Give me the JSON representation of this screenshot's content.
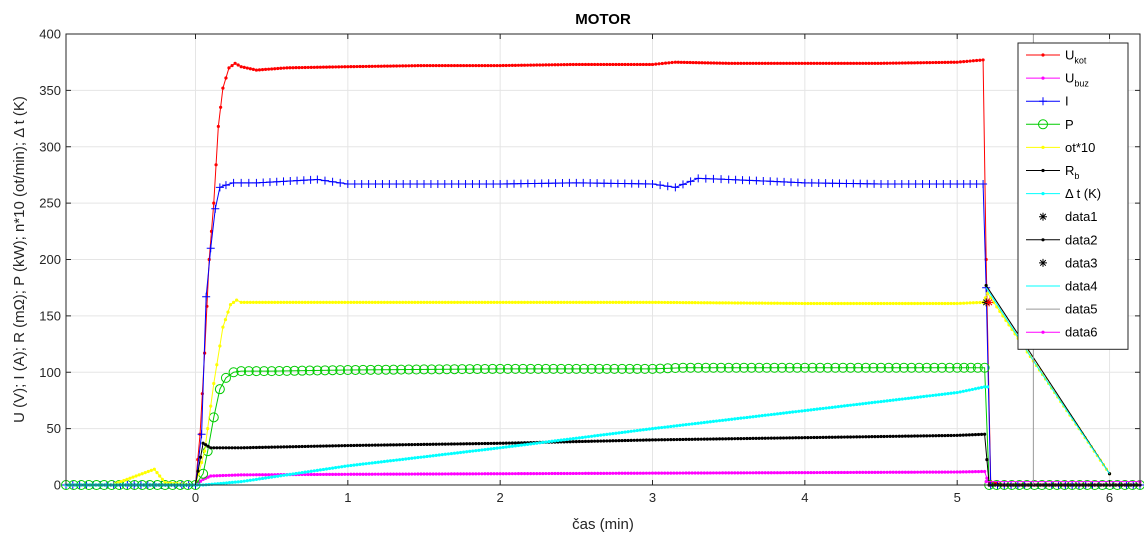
{
  "chart_data": {
    "type": "line",
    "title": "MOTOR",
    "xlabel": "čas (min)",
    "ylabel": "U (V); I (A); R (mΩ); P (kW); n*10 (ot/min); Δ t (K)",
    "xlim": [
      -0.85,
      6.2
    ],
    "ylim": [
      0,
      400
    ],
    "xticks": [
      0,
      1,
      2,
      3,
      4,
      5,
      6
    ],
    "yticks": [
      0,
      50,
      100,
      150,
      200,
      250,
      300,
      350,
      400
    ],
    "grid": true,
    "legend_position": "top-right",
    "series": [
      {
        "name": "U",
        "sub": "kot",
        "color": "#ff0000",
        "marker": "dot",
        "x": [
          -0.85,
          0.0,
          0.03,
          0.06,
          0.09,
          0.12,
          0.15,
          0.18,
          0.22,
          0.26,
          0.3,
          0.4,
          0.6,
          1.0,
          1.5,
          2.0,
          2.5,
          3.0,
          3.15,
          3.5,
          4.0,
          4.5,
          5.0,
          5.17,
          5.19,
          5.22,
          5.3,
          6.2
        ],
        "y": [
          0,
          0,
          45,
          117,
          200,
          250,
          318,
          352,
          370,
          374,
          371,
          368,
          370,
          371,
          372,
          372,
          373,
          373,
          375,
          374,
          374,
          374,
          375,
          377,
          200,
          3,
          0,
          0
        ]
      },
      {
        "name": "U",
        "sub": "buz",
        "color": "#ff00ff",
        "marker": "dot",
        "x": [
          -0.85,
          0.0,
          0.05,
          0.1,
          0.3,
          1.0,
          2.0,
          3.0,
          4.0,
          5.0,
          5.18,
          5.21,
          6.2
        ],
        "y": [
          0,
          0,
          5,
          8,
          9,
          9.5,
          10,
          10.5,
          11,
          11.5,
          12,
          0,
          0
        ]
      },
      {
        "name": "I",
        "sub": "",
        "color": "#0000ff",
        "marker": "plus",
        "x": [
          -0.85,
          0.0,
          0.04,
          0.07,
          0.1,
          0.13,
          0.16,
          0.2,
          0.25,
          0.4,
          0.8,
          1.0,
          1.5,
          2.0,
          2.5,
          3.0,
          3.15,
          3.3,
          3.5,
          4.0,
          4.5,
          5.0,
          5.17,
          5.19,
          5.22,
          6.2
        ],
        "y": [
          0,
          0,
          45,
          167,
          210,
          245,
          264,
          266,
          268,
          268,
          271,
          267,
          267,
          267,
          268,
          267,
          264,
          272,
          271,
          268,
          267,
          267,
          267,
          175,
          0,
          0
        ]
      },
      {
        "name": "P",
        "sub": "",
        "color": "#00cc00",
        "marker": "circle",
        "x": [
          -0.85,
          0.0,
          0.05,
          0.08,
          0.12,
          0.16,
          0.2,
          0.25,
          0.3,
          0.5,
          1.0,
          2.0,
          3.0,
          3.2,
          4.0,
          5.0,
          5.18,
          5.21,
          6.2
        ],
        "y": [
          0,
          0,
          10,
          30,
          60,
          85,
          95,
          100,
          101,
          101,
          102,
          103,
          103,
          104,
          104,
          104,
          104,
          0,
          0
        ]
      },
      {
        "name": "ot*10",
        "sub": "",
        "color": "#ffff00",
        "marker": "dot",
        "x": [
          -0.85,
          -0.55,
          -0.35,
          -0.27,
          -0.2,
          0.0,
          0.06,
          0.12,
          0.18,
          0.23,
          0.27,
          0.3,
          0.5,
          1.0,
          2.0,
          3.0,
          4.0,
          5.0,
          5.17,
          5.2,
          6.0
        ],
        "y": [
          0,
          0,
          10,
          14,
          2,
          0,
          30,
          90,
          140,
          160,
          164,
          162,
          162,
          162,
          162,
          162,
          161,
          161,
          162,
          170,
          10
        ]
      },
      {
        "name": "R",
        "sub": "b",
        "color": "#000000",
        "marker": "dot",
        "x": [
          -0.85,
          0.0,
          0.05,
          0.1,
          0.3,
          1.0,
          2.0,
          3.0,
          4.0,
          5.0,
          5.18,
          5.21,
          6.2
        ],
        "y": [
          0,
          0,
          37,
          33,
          33,
          35,
          37,
          40,
          42,
          44,
          45,
          0,
          0
        ]
      },
      {
        "name": "Δ t (K)",
        "sub": "",
        "color": "#00ffff",
        "marker": "dot",
        "x": [
          -0.85,
          0.05,
          0.3,
          1.0,
          2.0,
          3.0,
          4.0,
          5.0,
          5.18,
          5.2
        ],
        "y": [
          0,
          0,
          3,
          17,
          33,
          50,
          66,
          82,
          87,
          87
        ]
      },
      {
        "name": "data1",
        "sub": "",
        "color": "#000000",
        "marker": "asterisk",
        "x": [
          5.19
        ],
        "y": [
          162
        ]
      },
      {
        "name": "data2",
        "sub": "",
        "color": "#000000",
        "marker": "dot",
        "x": [
          5.19,
          6.0
        ],
        "y": [
          177,
          10
        ]
      },
      {
        "name": "data3",
        "sub": "",
        "color": "#ff0000",
        "marker": "asterisk",
        "x": [
          5.21
        ],
        "y": [
          162
        ]
      },
      {
        "name": "data4",
        "sub": "",
        "color": "#00ffff",
        "marker": "none",
        "x": [
          5.19,
          5.55,
          6.0
        ],
        "y": [
          175,
          100,
          10
        ]
      },
      {
        "name": "data5",
        "sub": "",
        "color": "#999999",
        "marker": "none",
        "x": [
          5.5,
          5.5
        ],
        "y": [
          0,
          400
        ]
      },
      {
        "name": "data6",
        "sub": "",
        "color": "#ff00ff",
        "marker": "dot",
        "x": [
          5.19,
          6.2
        ],
        "y": [
          3,
          3
        ]
      }
    ]
  }
}
